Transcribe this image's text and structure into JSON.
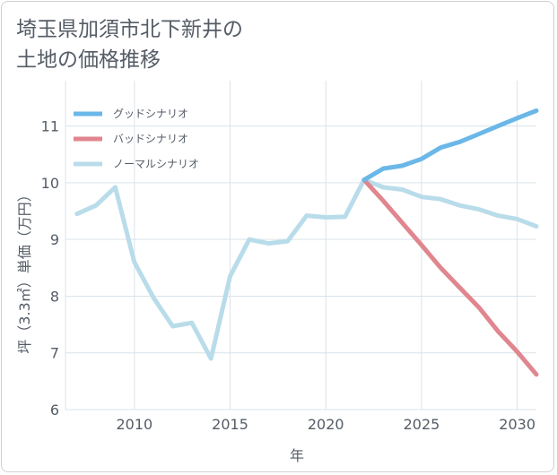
{
  "title": "埼玉県加須市北下新井の\n土地の価格推移",
  "chart_data": {
    "type": "line",
    "xlabel": "年",
    "ylabel": "坪（3.3㎡）単価（万円）",
    "xlim": [
      2006.4,
      2031
    ],
    "ylim": [
      6,
      11.8
    ],
    "xticks": [
      2010,
      2015,
      2020,
      2025,
      2030
    ],
    "yticks": [
      6,
      7,
      8,
      9,
      10,
      11
    ],
    "grid": true,
    "legend_position": "top-left",
    "series": [
      {
        "name": "グッドシナリオ",
        "color": "#6bb7e8",
        "x": [
          2022,
          2023,
          2024,
          2025,
          2026,
          2027,
          2028,
          2029,
          2030,
          2031
        ],
        "y": [
          10.05,
          10.25,
          10.3,
          10.42,
          10.62,
          10.72,
          10.86,
          11.0,
          11.14,
          11.27
        ]
      },
      {
        "name": "バッドシナリオ",
        "color": "#e0868e",
        "x": [
          2022,
          2023,
          2024,
          2025,
          2026,
          2027,
          2028,
          2029,
          2030,
          2031
        ],
        "y": [
          10.05,
          9.68,
          9.29,
          8.9,
          8.5,
          8.15,
          7.8,
          7.38,
          7.02,
          6.62
        ]
      },
      {
        "name": "ノーマルシナリオ",
        "color": "#b9dcea",
        "x": [
          2007,
          2008,
          2009,
          2010,
          2011,
          2012,
          2013,
          2014,
          2015,
          2016,
          2017,
          2018,
          2019,
          2020,
          2021,
          2022,
          2023,
          2024,
          2025,
          2026,
          2027,
          2028,
          2029,
          2030,
          2031
        ],
        "y": [
          9.45,
          9.6,
          9.92,
          8.6,
          7.97,
          7.47,
          7.53,
          6.9,
          8.35,
          9.0,
          8.93,
          8.97,
          9.42,
          9.39,
          9.4,
          10.05,
          9.92,
          9.88,
          9.75,
          9.71,
          9.6,
          9.53,
          9.42,
          9.36,
          9.23
        ]
      }
    ]
  }
}
